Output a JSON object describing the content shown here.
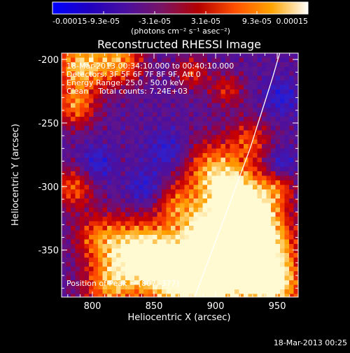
{
  "chart_data": {
    "type": "heatmap",
    "title": "Reconstructed RHESSI Image",
    "xlabel": "Heliocentric X (arcsec)",
    "ylabel": "Heliocentric Y (arcsec)",
    "xlim": [
      775,
      967
    ],
    "ylim": [
      -387,
      -195
    ],
    "x_ticks": [
      800,
      850,
      900,
      950
    ],
    "x_tick_labels": [
      "800",
      "850",
      "900",
      "950"
    ],
    "y_ticks": [
      -200,
      -250,
      -300,
      -350
    ],
    "y_tick_labels": [
      "-200",
      "-250",
      "-300",
      "-350"
    ],
    "colorbar": {
      "min": -0.00015,
      "max": 0.00015,
      "tick_labels": [
        "-0.00015",
        "-9.3e-05",
        "-3.1e-05",
        "3.1e-05",
        "9.3e-05",
        "0.00015"
      ],
      "unit_label": "(photons cm⁻² s⁻¹ asec⁻²)",
      "colormap": [
        "#0000ff",
        "#2000c0",
        "#4a0fa0",
        "#7a1464",
        "#b40000",
        "#ff5000",
        "#ffa400",
        "#ffffff"
      ]
    },
    "annotations": [
      "18-Mar-2013 00:34:10.000 to 00:40:10.000",
      "Detectors: 3F 5F 6F 7F 8F 9F, Att 0",
      "Energy Range: 25.0 - 50.0 keV",
      "Clean    Total counts: 7.24E+03"
    ],
    "peak_label": "Position of Peak = [807,-377]",
    "peak_position": [
      807,
      -377
    ],
    "limb_curve": [
      [
        883,
        -387
      ],
      [
        905,
        -330
      ],
      [
        928,
        -270
      ],
      [
        946,
        -215
      ],
      [
        952,
        -195
      ]
    ],
    "limb_color": "#ffffff",
    "image_description": "Clean-reconstructed map: mostly purple background with red/orange/yellow emission patches concentrated in the lower-right, brightest near the limb around x ~905-930, y ~ -300 to -380."
  },
  "footer": {
    "timestamp": "18-Mar-2013 00:25"
  }
}
